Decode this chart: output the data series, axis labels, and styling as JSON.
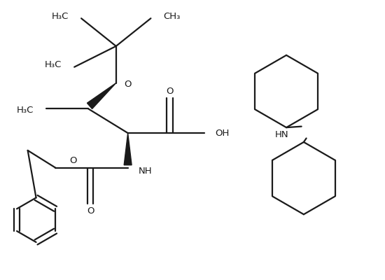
{
  "bg_color": "#ffffff",
  "line_color": "#1a1a1a",
  "line_width": 1.6,
  "font_size": 9.5,
  "fig_width": 5.5,
  "fig_height": 4.0,
  "dpi": 100,
  "xlim": [
    0,
    5.5
  ],
  "ylim": [
    0,
    4.0
  ]
}
